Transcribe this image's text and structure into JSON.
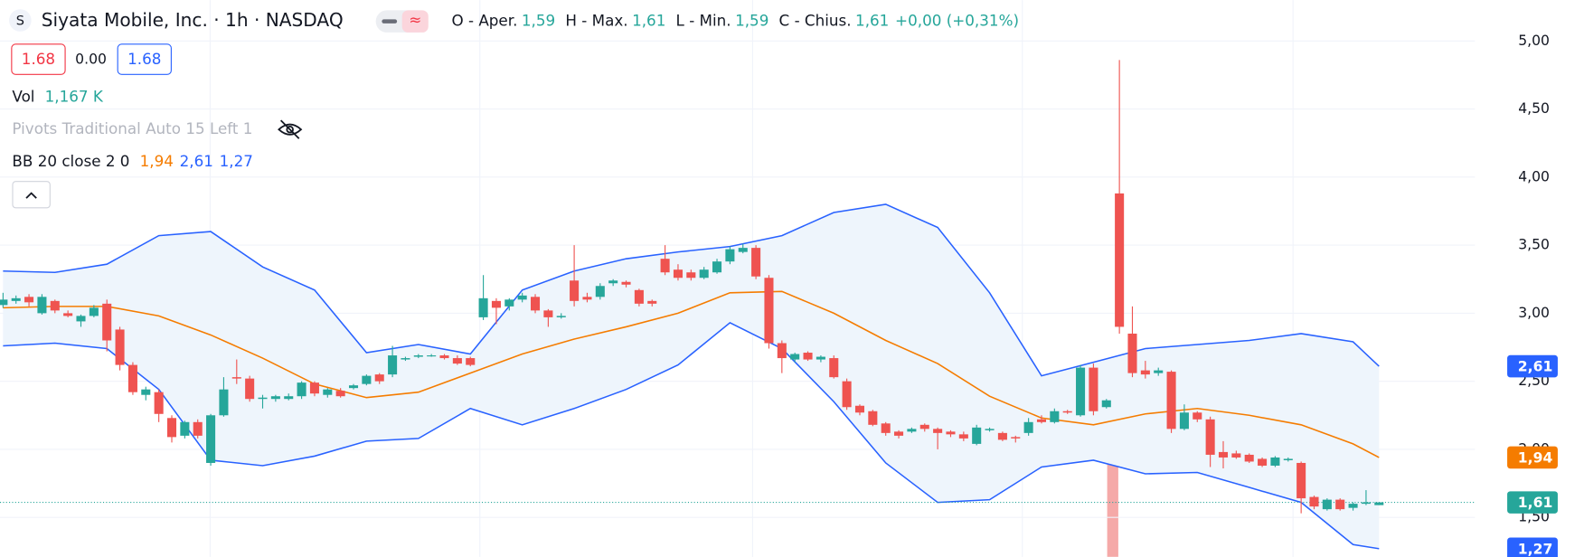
{
  "header": {
    "logo": "S",
    "title": "Siyata Mobile, Inc. · 1h · NASDAQ",
    "ohlc": [
      {
        "label": "O - Aper.",
        "value": "1,59"
      },
      {
        "label": "H - Max.",
        "value": "1,61"
      },
      {
        "label": "L - Min.",
        "value": "1,59"
      },
      {
        "label": "C - Chius.",
        "value": "1,61"
      }
    ],
    "change": "+0,00 (+0,31%)"
  },
  "buttons": {
    "sell": "1.68",
    "spread": "0.00",
    "buy": "1.68"
  },
  "indicators": {
    "vol": {
      "name": "Vol",
      "value": "1,167 K"
    },
    "pivots": "Pivots Traditional Auto 15 Left 1",
    "bb": {
      "name": "BB 20 close 2 0",
      "middle": "1,94",
      "upper": "2,61",
      "lower": "1,27"
    }
  },
  "chart_data": {
    "type": "candlestick",
    "up_color": "#26a69a",
    "down_color": "#ef5350",
    "open": [
      3.06,
      3.09,
      3.12,
      3.0,
      3.09,
      3.0,
      2.94,
      2.98,
      3.07,
      2.88,
      2.62,
      2.4,
      2.42,
      2.23,
      2.1,
      2.2,
      1.9,
      2.25,
      2.53,
      2.52,
      2.37,
      2.37,
      2.37,
      2.39,
      2.49,
      2.4,
      2.43,
      2.45,
      2.48,
      2.55,
      2.55,
      2.66,
      2.68,
      2.69,
      2.69,
      2.67,
      2.67,
      2.97,
      3.09,
      3.05,
      3.1,
      3.12,
      3.02,
      2.97,
      3.24,
      3.12,
      3.12,
      3.22,
      3.23,
      3.17,
      3.09,
      3.4,
      3.32,
      3.3,
      3.26,
      3.3,
      3.38,
      3.45,
      3.48,
      3.26,
      2.78,
      2.66,
      2.71,
      2.66,
      2.67,
      2.5,
      2.32,
      2.28,
      2.19,
      2.13,
      2.13,
      2.18,
      2.15,
      2.13,
      2.11,
      2.04,
      2.14,
      2.12,
      2.09,
      2.12,
      2.22,
      2.2,
      2.28,
      2.25,
      2.6,
      2.31,
      3.88,
      2.85,
      2.58,
      2.56,
      2.57,
      2.15,
      2.27,
      2.22,
      1.98,
      1.97,
      1.96,
      1.93,
      1.88,
      1.92,
      1.9,
      1.65,
      1.56,
      1.63,
      1.57,
      1.6,
      1.59
    ],
    "high": [
      3.15,
      3.13,
      3.14,
      3.14,
      3.1,
      3.02,
      2.99,
      3.06,
      3.1,
      2.9,
      2.64,
      2.46,
      2.44,
      2.25,
      2.21,
      2.22,
      2.26,
      2.53,
      2.66,
      2.54,
      2.4,
      2.4,
      2.41,
      2.5,
      2.5,
      2.45,
      2.45,
      2.48,
      2.55,
      2.56,
      2.76,
      2.68,
      2.7,
      2.7,
      2.7,
      2.69,
      2.68,
      3.28,
      3.11,
      3.11,
      3.15,
      3.14,
      3.03,
      3.0,
      3.5,
      3.15,
      3.22,
      3.25,
      3.24,
      3.18,
      3.1,
      3.5,
      3.36,
      3.32,
      3.34,
      3.4,
      3.49,
      3.51,
      3.5,
      3.28,
      2.8,
      2.71,
      2.72,
      2.69,
      2.69,
      2.52,
      2.33,
      2.29,
      2.2,
      2.14,
      2.16,
      2.19,
      2.16,
      2.14,
      2.13,
      2.18,
      2.16,
      2.13,
      2.1,
      2.23,
      2.25,
      2.3,
      2.29,
      2.62,
      2.63,
      2.37,
      4.86,
      3.05,
      2.65,
      2.6,
      2.58,
      2.33,
      2.28,
      2.24,
      2.06,
      1.99,
      1.97,
      1.94,
      1.95,
      1.94,
      1.91,
      1.66,
      1.64,
      1.64,
      1.61,
      1.7,
      1.61
    ],
    "low": [
      3.04,
      3.07,
      3.05,
      2.99,
      3.0,
      2.97,
      2.9,
      2.97,
      2.72,
      2.58,
      2.4,
      2.36,
      2.2,
      2.05,
      2.08,
      2.08,
      1.88,
      2.24,
      2.48,
      2.35,
      2.3,
      2.35,
      2.36,
      2.37,
      2.39,
      2.38,
      2.38,
      2.44,
      2.47,
      2.48,
      2.53,
      2.65,
      2.67,
      2.68,
      2.66,
      2.62,
      2.61,
      2.95,
      2.92,
      3.02,
      3.08,
      3.0,
      2.9,
      2.96,
      3.05,
      3.08,
      3.1,
      3.2,
      3.19,
      3.05,
      3.05,
      3.28,
      3.24,
      3.24,
      3.25,
      3.29,
      3.36,
      3.44,
      3.25,
      2.74,
      2.56,
      2.64,
      2.65,
      2.64,
      2.52,
      2.29,
      2.25,
      2.17,
      2.1,
      2.08,
      2.12,
      2.13,
      2.0,
      2.09,
      2.06,
      2.03,
      2.13,
      2.06,
      2.05,
      2.1,
      2.19,
      2.19,
      2.26,
      2.24,
      2.25,
      2.3,
      2.85,
      2.53,
      2.52,
      2.54,
      2.12,
      2.14,
      2.2,
      1.87,
      1.86,
      1.93,
      1.9,
      1.87,
      1.87,
      1.91,
      1.53,
      1.56,
      1.55,
      1.55,
      1.55,
      1.59,
      1.59
    ],
    "close": [
      3.1,
      3.11,
      3.08,
      3.12,
      3.02,
      2.98,
      2.98,
      3.04,
      2.8,
      2.62,
      2.42,
      2.44,
      2.26,
      2.09,
      2.2,
      2.1,
      2.25,
      2.44,
      2.52,
      2.37,
      2.38,
      2.39,
      2.39,
      2.49,
      2.41,
      2.44,
      2.39,
      2.47,
      2.54,
      2.5,
      2.69,
      2.67,
      2.69,
      2.69,
      2.67,
      2.63,
      2.62,
      3.11,
      3.04,
      3.1,
      3.13,
      3.02,
      2.97,
      2.98,
      3.09,
      3.1,
      3.2,
      3.24,
      3.21,
      3.07,
      3.07,
      3.3,
      3.26,
      3.26,
      3.32,
      3.38,
      3.47,
      3.48,
      3.27,
      2.78,
      2.67,
      2.7,
      2.66,
      2.68,
      2.53,
      2.31,
      2.27,
      2.18,
      2.12,
      2.1,
      2.15,
      2.15,
      2.12,
      2.11,
      2.08,
      2.16,
      2.15,
      2.07,
      2.08,
      2.2,
      2.2,
      2.28,
      2.27,
      2.6,
      2.28,
      2.36,
      2.9,
      2.56,
      2.55,
      2.58,
      2.15,
      2.27,
      2.22,
      1.96,
      1.94,
      1.94,
      1.91,
      1.88,
      1.94,
      1.93,
      1.64,
      1.58,
      1.63,
      1.56,
      1.6,
      1.61,
      1.61
    ],
    "bands": {
      "x": [
        0,
        4,
        8,
        12,
        16,
        20,
        24,
        28,
        32,
        36,
        40,
        44,
        48,
        52,
        56,
        60,
        64,
        68,
        72,
        76,
        80,
        84,
        88,
        92,
        96,
        100,
        104,
        106
      ],
      "upper": [
        3.31,
        3.3,
        3.36,
        3.57,
        3.6,
        3.34,
        3.17,
        2.71,
        2.77,
        2.7,
        3.17,
        3.31,
        3.4,
        3.45,
        3.49,
        3.57,
        3.74,
        3.8,
        3.63,
        3.15,
        2.54,
        2.64,
        2.74,
        2.77,
        2.8,
        2.85,
        2.79,
        2.61
      ],
      "middle": [
        3.04,
        3.05,
        3.05,
        2.98,
        2.84,
        2.67,
        2.48,
        2.38,
        2.42,
        2.56,
        2.7,
        2.81,
        2.9,
        3.0,
        3.15,
        3.16,
        3.0,
        2.8,
        2.63,
        2.39,
        2.23,
        2.18,
        2.26,
        2.3,
        2.25,
        2.18,
        2.04,
        1.94
      ],
      "lower": [
        2.76,
        2.78,
        2.74,
        2.44,
        1.92,
        1.88,
        1.95,
        2.06,
        2.08,
        2.3,
        2.18,
        2.3,
        2.44,
        2.62,
        2.93,
        2.74,
        2.35,
        1.9,
        1.61,
        1.63,
        1.87,
        1.92,
        1.82,
        1.83,
        1.72,
        1.61,
        1.3,
        1.27
      ],
      "band_color": "#2962ff",
      "middle_color": "#f57c00",
      "fill_color": "#eef5fc"
    },
    "ylim": [
      1.21,
      5.3
    ],
    "yticks": [
      {
        "value": 1.5,
        "label": "1,50"
      },
      {
        "value": 2.0,
        "label": "2,00"
      },
      {
        "value": 2.5,
        "label": "2,50"
      },
      {
        "value": 3.0,
        "label": "3,00"
      },
      {
        "value": 3.5,
        "label": "3,50"
      },
      {
        "value": 4.0,
        "label": "4,00"
      },
      {
        "value": 4.5,
        "label": "4,50"
      },
      {
        "value": 5.0,
        "label": "5,00"
      }
    ],
    "grid": true
  }
}
